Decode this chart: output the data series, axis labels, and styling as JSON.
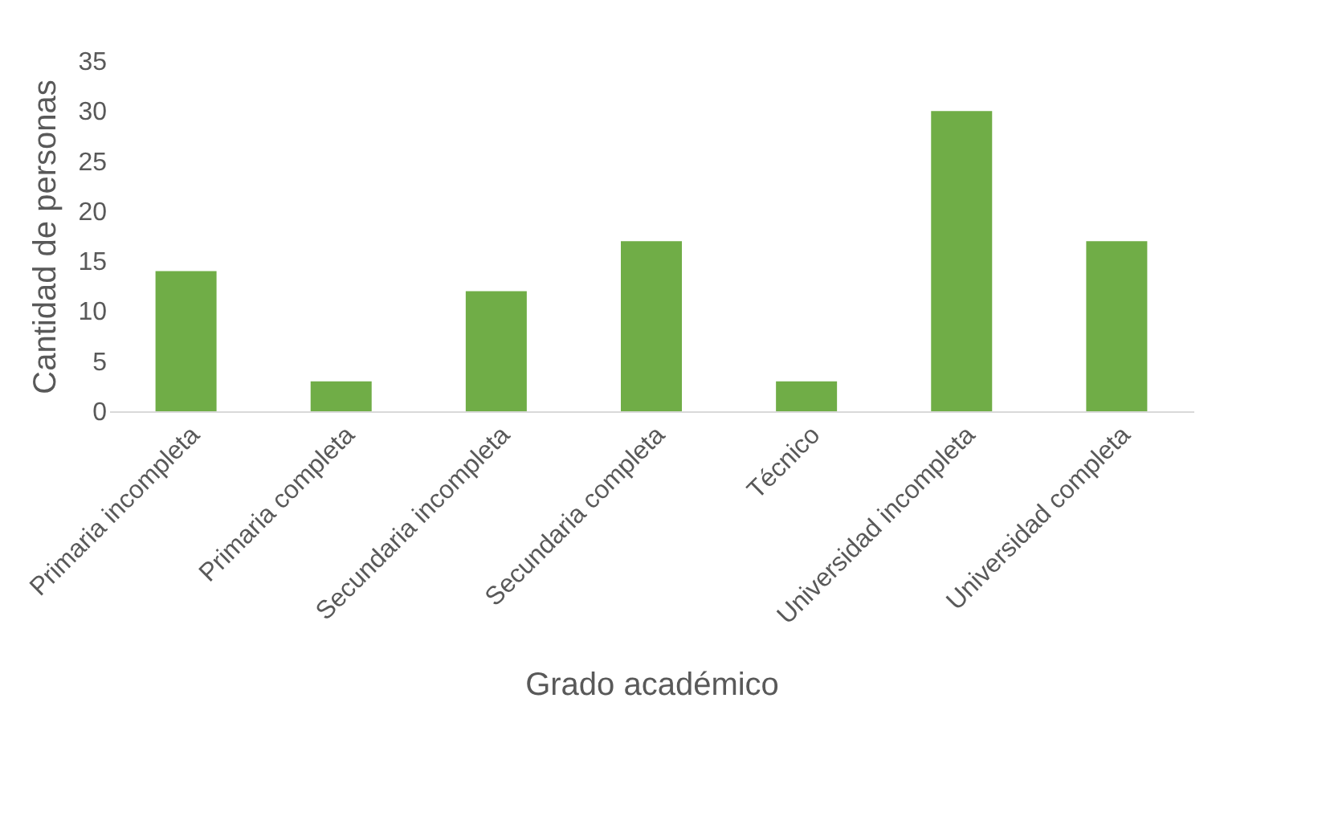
{
  "chart_data": {
    "type": "bar",
    "xlabel": "Grado académico",
    "ylabel": "Cantidad de personas",
    "categories": [
      "Primaria incompleta",
      "Primaria completa",
      "Secundaria incompleta",
      "Secundaria completa",
      "Técnico",
      "Universidad incompleta",
      "Universidad completa"
    ],
    "values": [
      14,
      3,
      12,
      17,
      3,
      30,
      17
    ],
    "color": "#70ad47",
    "ylim": [
      0,
      35
    ],
    "yticks": [
      0,
      5,
      10,
      15,
      20,
      25,
      30,
      35
    ],
    "grid": false
  }
}
